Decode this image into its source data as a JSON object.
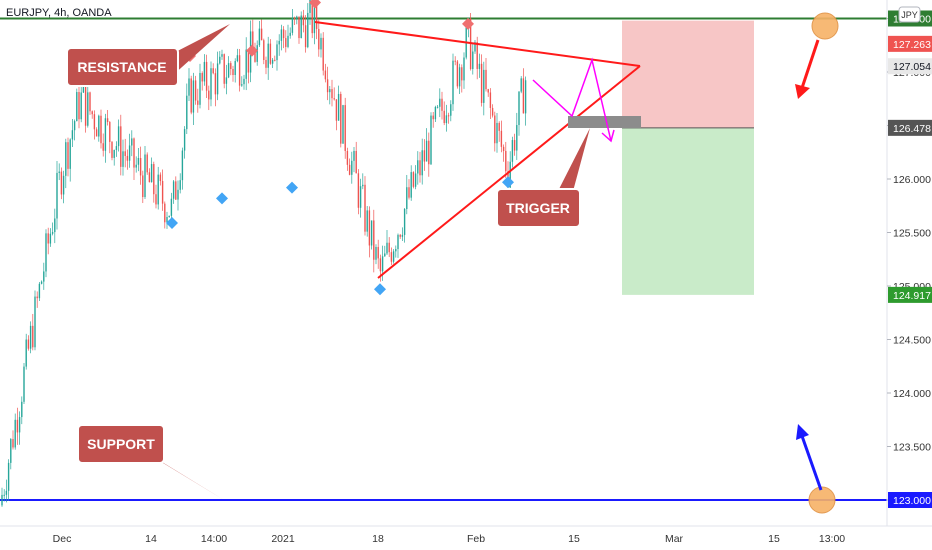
{
  "header": {
    "title": "EURJPY, 4h, OANDA",
    "currency_badge": "JPY"
  },
  "colors": {
    "bull": "#26a69a",
    "bear": "#ef5350",
    "resistance_line": "#2e7d32",
    "support_line": "#1a1aff",
    "triangle": "#ff1a1a",
    "callout_bg": "#c0504d",
    "zone_loss": "#f7c6c6",
    "zone_profit": "#c9ebc9",
    "projection": "#ff00ff",
    "marker_top": "#ef6f6f",
    "marker_bottom": "#42a5f5"
  },
  "annotations": {
    "resistance_label": "RESISTANCE",
    "support_label": "SUPPORT",
    "trigger_label": "TRIGGER"
  },
  "chart_data": {
    "type": "candlestick",
    "symbol": "EURJPY",
    "timeframe": "4h",
    "source": "OANDA",
    "ylim": [
      122.72,
      128.0
    ],
    "y_ticks": [
      123.0,
      123.5,
      124.0,
      124.5,
      125.0,
      125.5,
      126.0,
      126.5,
      127.0,
      127.5
    ],
    "y_tick_labels": [
      "123.000",
      "123.500",
      "124.000",
      "124.500",
      "125.000",
      "125.500",
      "126.000",
      "126.500",
      "127.000",
      "127.500"
    ],
    "x_tick_labels": [
      "Dec",
      "14",
      "14:00",
      "2021",
      "18",
      "Feb",
      "15",
      "Mar",
      "15",
      "13:00"
    ],
    "price_labels": [
      {
        "label": "127.500",
        "value": 127.5,
        "color": "#2e7d32"
      },
      {
        "label": "127.263",
        "value": 127.263,
        "color": "#ef5350"
      },
      {
        "label": "127.054",
        "value": 127.054,
        "color": "#e8e8e8"
      },
      {
        "label": "126.478",
        "value": 126.478,
        "color": "#555555"
      },
      {
        "label": "124.917",
        "value": 124.917,
        "color": "#2e9b2e"
      },
      {
        "label": "123.000",
        "value": 123.0,
        "color": "#1a1aff"
      }
    ],
    "horizontal_levels": [
      {
        "name": "resistance",
        "value": 127.5
      },
      {
        "name": "support",
        "value": 123.0
      }
    ],
    "position": {
      "entry": 126.478,
      "stop": 127.263,
      "target": 124.917
    },
    "key_points": [
      {
        "date": "Nov 25",
        "price": 122.95
      },
      {
        "date": "Dec 1",
        "price": 126.1
      },
      {
        "date": "Dec 2",
        "price": 126.75
      },
      {
        "date": "Dec 15",
        "price": 125.7
      },
      {
        "date": "Dec 17",
        "price": 126.8
      },
      {
        "date": "Dec 22",
        "price": 127.1
      },
      {
        "date": "Jan 5",
        "price": 127.5
      },
      {
        "date": "Jan 18",
        "price": 125.1
      },
      {
        "date": "Jan 29",
        "price": 127.3
      },
      {
        "date": "Feb 5",
        "price": 126.1
      },
      {
        "date": "Feb 8",
        "price": 127.05
      }
    ],
    "pivot_tops": [
      126.78,
      127.0,
      127.05,
      127.5,
      127.3
    ],
    "pivot_bottoms": [
      125.72,
      125.95,
      126.05,
      125.1,
      126.1
    ]
  }
}
